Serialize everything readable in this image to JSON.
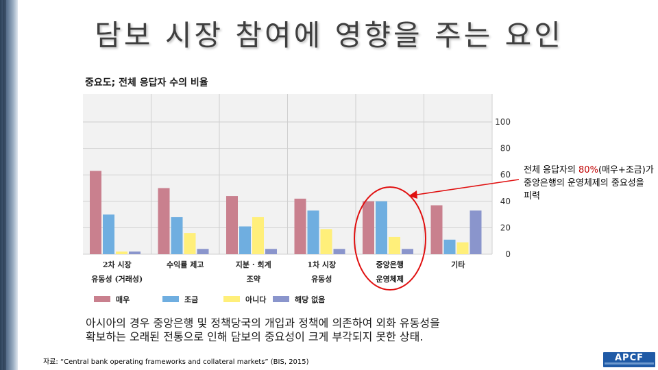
{
  "slide": {
    "title": "담보 시장 참여에 영향을 주는 요인",
    "note_parts": [
      "전체 응답자의 ",
      "80%",
      "(매우+조금)가 중앙은행의 운영체제의 중요성을 피력"
    ],
    "description_line1": "아시아의 경우 중앙은행 및 정책당국의 개입과 정책에 의존하여 외화 유동성을",
    "description_line2": "확보하는 오래된 전통으로 인해 담보의 중요성이 크게 부각되지 못한 상태.",
    "source": "자료: “Central bank operating frameworks and collateral markets” (BIS, 2015)",
    "logo_text": "APCF"
  },
  "colors": {
    "highlight_text": "#c00000",
    "circle": "#e01010",
    "arrow": "#e01010"
  },
  "chart_data": {
    "type": "bar",
    "title": "중요도; 전체 응답자 수의 비율",
    "categories": [
      [
        "2차 시장",
        "유동성 (거래성)"
      ],
      [
        "수익률 제고",
        ""
      ],
      [
        "지분 · 회계",
        "조약"
      ],
      [
        "1차 시장",
        "유동성"
      ],
      [
        "중앙은행",
        "운영체제"
      ],
      [
        "기타",
        ""
      ]
    ],
    "series": [
      {
        "name": "매우",
        "color": "#c9808e",
        "values": [
          63,
          50,
          44,
          42,
          40,
          37
        ]
      },
      {
        "name": "조금",
        "color": "#6faee0",
        "values": [
          30,
          28,
          21,
          33,
          40,
          11
        ]
      },
      {
        "name": "아니다",
        "color": "#ffef7a",
        "values": [
          2,
          16,
          28,
          19,
          13,
          9
        ]
      },
      {
        "name": "해당 없음",
        "color": "#8a95cc",
        "values": [
          2,
          4,
          4,
          4,
          4,
          33
        ]
      }
    ],
    "yticks": [
      0,
      20,
      40,
      60,
      80,
      100
    ],
    "ylim": [
      0,
      110
    ],
    "grid": true,
    "legend": "bottom",
    "highlight_category_index": 4
  }
}
